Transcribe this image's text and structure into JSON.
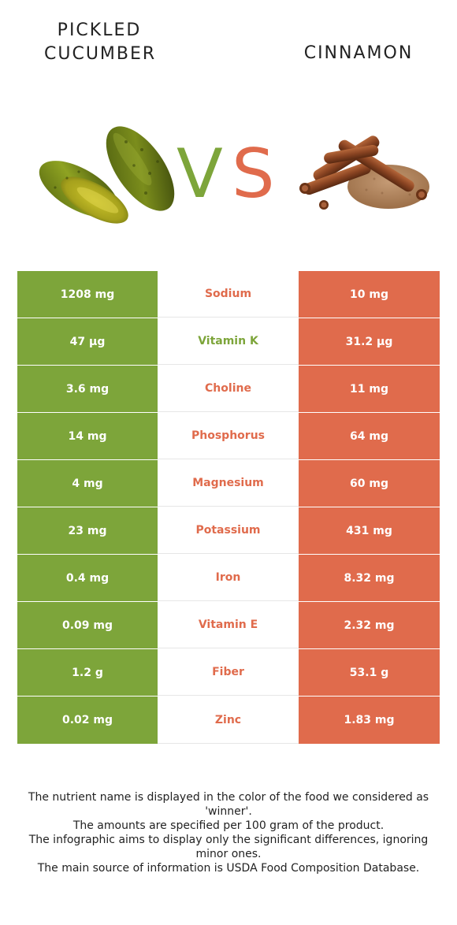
{
  "header": {
    "left_title": "PICKLED CUCUMBER",
    "right_title": "CINNAMON",
    "vs_left": "V",
    "vs_right": "S"
  },
  "colors": {
    "left_food": "#7da53a",
    "right_food": "#e06b4c"
  },
  "icons": {
    "left_image": "pickled-cucumber-icon",
    "right_image": "cinnamon-icon"
  },
  "rows": [
    {
      "left": "1208 mg",
      "nutrient": "Sodium",
      "right": "10 mg",
      "winner": "right"
    },
    {
      "left": "47 µg",
      "nutrient": "Vitamin K",
      "right": "31.2 µg",
      "winner": "left"
    },
    {
      "left": "3.6 mg",
      "nutrient": "Choline",
      "right": "11 mg",
      "winner": "right"
    },
    {
      "left": "14 mg",
      "nutrient": "Phosphorus",
      "right": "64 mg",
      "winner": "right"
    },
    {
      "left": "4 mg",
      "nutrient": "Magnesium",
      "right": "60 mg",
      "winner": "right"
    },
    {
      "left": "23 mg",
      "nutrient": "Potassium",
      "right": "431 mg",
      "winner": "right"
    },
    {
      "left": "0.4 mg",
      "nutrient": "Iron",
      "right": "8.32 mg",
      "winner": "right"
    },
    {
      "left": "0.09 mg",
      "nutrient": "Vitamin E",
      "right": "2.32 mg",
      "winner": "right"
    },
    {
      "left": "1.2 g",
      "nutrient": "Fiber",
      "right": "53.1 g",
      "winner": "right"
    },
    {
      "left": "0.02 mg",
      "nutrient": "Zinc",
      "right": "1.83 mg",
      "winner": "right"
    }
  ],
  "footer": {
    "line1": "The nutrient name is displayed in the color of the food we considered as 'winner'.",
    "line2": "The amounts are specified per 100 gram of the product.",
    "line3": "The infographic aims to display only the significant differences, ignoring minor ones.",
    "line4": "The main source of information is USDA Food Composition Database."
  }
}
